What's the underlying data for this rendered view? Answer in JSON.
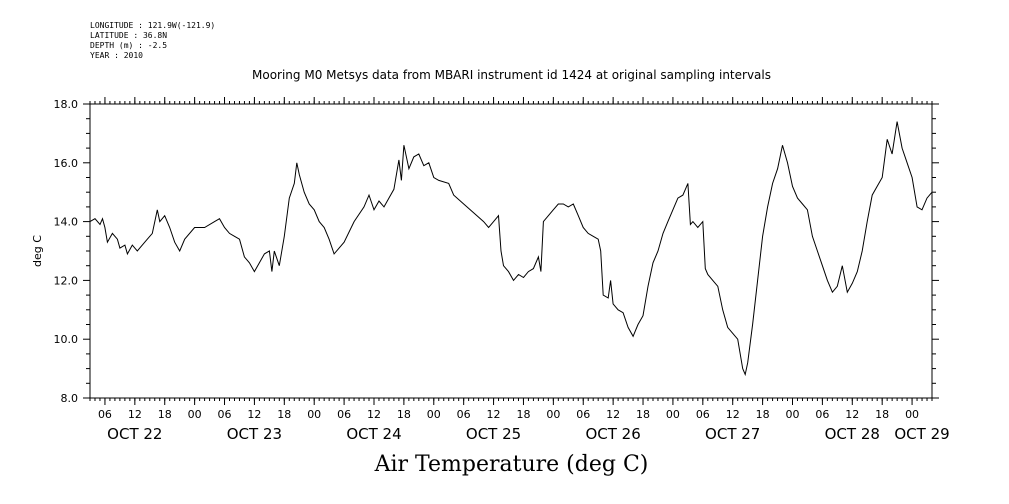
{
  "meta": {
    "longitude": "LONGITUDE : 121.9W(-121.9)",
    "latitude": "LATITUDE : 36.8N",
    "depth": "DEPTH (m) : -2.5",
    "year": "YEAR : 2010"
  },
  "chart_data": {
    "type": "line",
    "title": "Mooring M0 Metsys data from MBARI instrument id 1424 at original sampling intervals",
    "xlabel": "Air Temperature (deg C)",
    "ylabel": "deg C",
    "ylim": [
      8.0,
      18.0
    ],
    "yticks": [
      "8.0",
      "10.0",
      "12.0",
      "14.0",
      "16.0",
      "18.0"
    ],
    "xlim_hours": [
      3,
      172
    ],
    "hour_ticks": [
      {
        "h": 6,
        "label": "06"
      },
      {
        "h": 12,
        "label": "12"
      },
      {
        "h": 18,
        "label": "18"
      },
      {
        "h": 24,
        "label": "00"
      },
      {
        "h": 30,
        "label": "06"
      },
      {
        "h": 36,
        "label": "12"
      },
      {
        "h": 42,
        "label": "18"
      },
      {
        "h": 48,
        "label": "00"
      },
      {
        "h": 54,
        "label": "06"
      },
      {
        "h": 60,
        "label": "12"
      },
      {
        "h": 66,
        "label": "18"
      },
      {
        "h": 72,
        "label": "00"
      },
      {
        "h": 78,
        "label": "06"
      },
      {
        "h": 84,
        "label": "12"
      },
      {
        "h": 90,
        "label": "18"
      },
      {
        "h": 96,
        "label": "00"
      },
      {
        "h": 102,
        "label": "06"
      },
      {
        "h": 108,
        "label": "12"
      },
      {
        "h": 114,
        "label": "18"
      },
      {
        "h": 120,
        "label": "00"
      },
      {
        "h": 126,
        "label": "06"
      },
      {
        "h": 132,
        "label": "12"
      },
      {
        "h": 138,
        "label": "18"
      },
      {
        "h": 144,
        "label": "00"
      },
      {
        "h": 150,
        "label": "06"
      },
      {
        "h": 156,
        "label": "12"
      },
      {
        "h": 162,
        "label": "18"
      },
      {
        "h": 168,
        "label": "00"
      }
    ],
    "date_labels": [
      {
        "h": 12,
        "label": "OCT 22"
      },
      {
        "h": 36,
        "label": "OCT 23"
      },
      {
        "h": 60,
        "label": "OCT 24"
      },
      {
        "h": 84,
        "label": "OCT 25"
      },
      {
        "h": 108,
        "label": "OCT 26"
      },
      {
        "h": 132,
        "label": "OCT 27"
      },
      {
        "h": 156,
        "label": "OCT 28"
      },
      {
        "h": 170,
        "label": "OCT 29"
      }
    ],
    "series": [
      {
        "color": "#000000",
        "points": [
          [
            3.0,
            14.0
          ],
          [
            4.0,
            14.1
          ],
          [
            5.0,
            13.9
          ],
          [
            5.5,
            14.1
          ],
          [
            6.0,
            13.8
          ],
          [
            6.5,
            13.3
          ],
          [
            7.5,
            13.6
          ],
          [
            8.5,
            13.4
          ],
          [
            9.0,
            13.1
          ],
          [
            10.0,
            13.2
          ],
          [
            10.5,
            12.9
          ],
          [
            11.5,
            13.2
          ],
          [
            12.5,
            13.0
          ],
          [
            13.5,
            13.2
          ],
          [
            14.5,
            13.4
          ],
          [
            15.5,
            13.6
          ],
          [
            16.5,
            14.4
          ],
          [
            17.0,
            14.0
          ],
          [
            18.0,
            14.2
          ],
          [
            19.0,
            13.8
          ],
          [
            20.0,
            13.3
          ],
          [
            21.0,
            13.0
          ],
          [
            22.0,
            13.4
          ],
          [
            24.0,
            13.8
          ],
          [
            26.0,
            13.8
          ],
          [
            28.0,
            14.0
          ],
          [
            29.0,
            14.1
          ],
          [
            30.0,
            13.8
          ],
          [
            31.0,
            13.6
          ],
          [
            32.0,
            13.5
          ],
          [
            33.0,
            13.4
          ],
          [
            34.0,
            12.8
          ],
          [
            35.0,
            12.6
          ],
          [
            36.0,
            12.3
          ],
          [
            37.0,
            12.6
          ],
          [
            38.0,
            12.9
          ],
          [
            39.0,
            13.0
          ],
          [
            39.5,
            12.3
          ],
          [
            40.0,
            13.0
          ],
          [
            41.0,
            12.5
          ],
          [
            42.0,
            13.5
          ],
          [
            43.0,
            14.8
          ],
          [
            44.0,
            15.3
          ],
          [
            44.5,
            16.0
          ],
          [
            45.0,
            15.6
          ],
          [
            46.0,
            15.0
          ],
          [
            47.0,
            14.6
          ],
          [
            48.0,
            14.4
          ],
          [
            49.0,
            14.0
          ],
          [
            50.0,
            13.8
          ],
          [
            51.0,
            13.4
          ],
          [
            52.0,
            12.9
          ],
          [
            53.0,
            13.1
          ],
          [
            54.0,
            13.3
          ],
          [
            56.0,
            14.0
          ],
          [
            58.0,
            14.5
          ],
          [
            59.0,
            14.9
          ],
          [
            60.0,
            14.4
          ],
          [
            61.0,
            14.7
          ],
          [
            62.0,
            14.5
          ],
          [
            63.0,
            14.8
          ],
          [
            64.0,
            15.1
          ],
          [
            65.0,
            16.1
          ],
          [
            65.5,
            15.4
          ],
          [
            66.0,
            16.6
          ],
          [
            67.0,
            15.8
          ],
          [
            68.0,
            16.2
          ],
          [
            69.0,
            16.3
          ],
          [
            70.0,
            15.9
          ],
          [
            71.0,
            16.0
          ],
          [
            72.0,
            15.5
          ],
          [
            73.0,
            15.4
          ],
          [
            75.0,
            15.3
          ],
          [
            76.0,
            14.9
          ],
          [
            78.0,
            14.6
          ],
          [
            80.0,
            14.3
          ],
          [
            82.0,
            14.0
          ],
          [
            83.0,
            13.8
          ],
          [
            84.0,
            14.0
          ],
          [
            85.0,
            14.2
          ],
          [
            85.5,
            13.0
          ],
          [
            86.0,
            12.5
          ],
          [
            87.0,
            12.3
          ],
          [
            88.0,
            12.0
          ],
          [
            89.0,
            12.2
          ],
          [
            90.0,
            12.1
          ],
          [
            91.0,
            12.3
          ],
          [
            92.0,
            12.4
          ],
          [
            93.0,
            12.8
          ],
          [
            93.5,
            12.3
          ],
          [
            94.0,
            14.0
          ],
          [
            96.0,
            14.4
          ],
          [
            97.0,
            14.6
          ],
          [
            98.0,
            14.6
          ],
          [
            99.0,
            14.5
          ],
          [
            100.0,
            14.6
          ],
          [
            101.0,
            14.2
          ],
          [
            102.0,
            13.8
          ],
          [
            103.0,
            13.6
          ],
          [
            104.0,
            13.5
          ],
          [
            105.0,
            13.4
          ],
          [
            105.5,
            13.0
          ],
          [
            106.0,
            11.5
          ],
          [
            107.0,
            11.4
          ],
          [
            107.5,
            12.0
          ],
          [
            108.0,
            11.2
          ],
          [
            109.0,
            11.0
          ],
          [
            110.0,
            10.9
          ],
          [
            111.0,
            10.4
          ],
          [
            112.0,
            10.1
          ],
          [
            113.0,
            10.5
          ],
          [
            114.0,
            10.8
          ],
          [
            115.0,
            11.8
          ],
          [
            116.0,
            12.6
          ],
          [
            117.0,
            13.0
          ],
          [
            118.0,
            13.6
          ],
          [
            119.0,
            14.0
          ],
          [
            120.0,
            14.4
          ],
          [
            121.0,
            14.8
          ],
          [
            122.0,
            14.9
          ],
          [
            123.0,
            15.3
          ],
          [
            123.5,
            13.9
          ],
          [
            124.0,
            14.0
          ],
          [
            125.0,
            13.8
          ],
          [
            126.0,
            14.0
          ],
          [
            126.5,
            12.4
          ],
          [
            127.0,
            12.2
          ],
          [
            128.0,
            12.0
          ],
          [
            129.0,
            11.8
          ],
          [
            130.0,
            11.0
          ],
          [
            131.0,
            10.4
          ],
          [
            132.0,
            10.2
          ],
          [
            133.0,
            10.0
          ],
          [
            134.0,
            9.0
          ],
          [
            134.5,
            8.8
          ],
          [
            135.0,
            9.2
          ],
          [
            136.0,
            10.5
          ],
          [
            137.0,
            12.0
          ],
          [
            138.0,
            13.5
          ],
          [
            139.0,
            14.5
          ],
          [
            140.0,
            15.3
          ],
          [
            141.0,
            15.8
          ],
          [
            142.0,
            16.6
          ],
          [
            143.0,
            16.0
          ],
          [
            144.0,
            15.2
          ],
          [
            145.0,
            14.8
          ],
          [
            146.0,
            14.6
          ],
          [
            147.0,
            14.4
          ],
          [
            148.0,
            13.5
          ],
          [
            149.0,
            13.0
          ],
          [
            150.0,
            12.5
          ],
          [
            151.0,
            12.0
          ],
          [
            152.0,
            11.6
          ],
          [
            153.0,
            11.8
          ],
          [
            154.0,
            12.5
          ],
          [
            155.0,
            11.6
          ],
          [
            156.0,
            11.9
          ],
          [
            157.0,
            12.3
          ],
          [
            158.0,
            13.0
          ],
          [
            159.0,
            14.0
          ],
          [
            160.0,
            14.9
          ],
          [
            161.0,
            15.2
          ],
          [
            162.0,
            15.5
          ],
          [
            163.0,
            16.8
          ],
          [
            164.0,
            16.3
          ],
          [
            165.0,
            17.4
          ],
          [
            166.0,
            16.5
          ],
          [
            167.0,
            16.0
          ],
          [
            168.0,
            15.5
          ],
          [
            169.0,
            14.5
          ],
          [
            170.0,
            14.4
          ],
          [
            171.0,
            14.8
          ],
          [
            172.0,
            15.0
          ]
        ]
      }
    ]
  }
}
